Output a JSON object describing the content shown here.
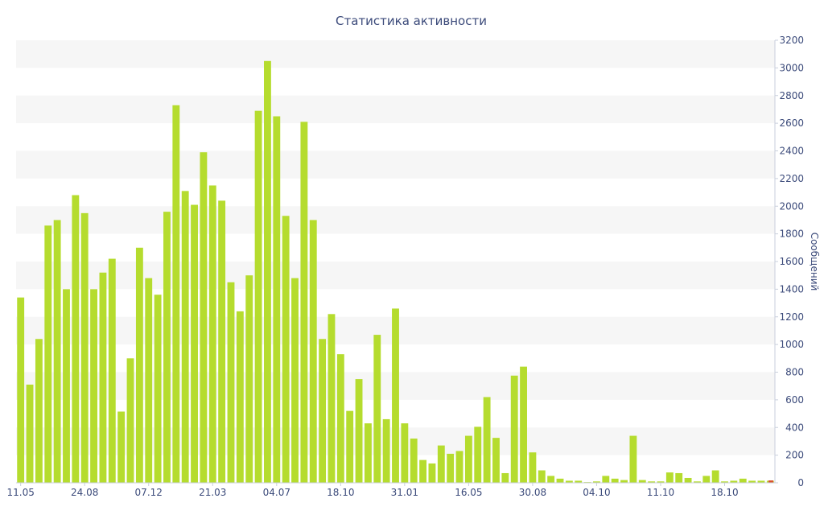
{
  "chart_data": {
    "type": "bar",
    "title": "Статистика активности",
    "xlabel": "",
    "ylabel": "Сообщений",
    "ylim": [
      0,
      3200
    ],
    "y_ticks": [
      0,
      200,
      400,
      600,
      800,
      1000,
      1200,
      1400,
      1600,
      1800,
      2000,
      2200,
      2400,
      2600,
      2800,
      3000,
      3200
    ],
    "y_axis_position": "right",
    "grid": "alternating horizontal bands",
    "x_tick_labels": [
      {
        "index": 0,
        "label": "11.05"
      },
      {
        "index": 7,
        "label": "24.08"
      },
      {
        "index": 14,
        "label": "07.12"
      },
      {
        "index": 21,
        "label": "21.03"
      },
      {
        "index": 28,
        "label": "04.07"
      },
      {
        "index": 35,
        "label": "18.10"
      },
      {
        "index": 42,
        "label": "31.01"
      },
      {
        "index": 49,
        "label": "16.05"
      },
      {
        "index": 56,
        "label": "30.08"
      },
      {
        "index": 63,
        "label": "04.10"
      },
      {
        "index": 70,
        "label": "11.10"
      },
      {
        "index": 77,
        "label": "18.10"
      }
    ],
    "series": [
      {
        "color": "#b5dc2e",
        "values": [
          1340,
          710,
          1040,
          1860,
          1900,
          1400,
          2080,
          1950,
          1400,
          1520,
          1620,
          515,
          900,
          1700,
          1480,
          1360,
          1960,
          2730,
          2110,
          2010,
          2390,
          2150,
          2040,
          1450,
          1240,
          1500,
          2690,
          3050,
          2650,
          1930,
          1480,
          2610,
          1900,
          1040,
          1220,
          930,
          520,
          750,
          430,
          1070,
          460,
          1260,
          430,
          320,
          165,
          140,
          270,
          210,
          230,
          340,
          405,
          620,
          325,
          70,
          775,
          840,
          220,
          90,
          50,
          30,
          15,
          15,
          5,
          10,
          50,
          30,
          20,
          340,
          20,
          10,
          10,
          75,
          70,
          35,
          10,
          50,
          90,
          10,
          15,
          30,
          15,
          15,
          15
        ]
      }
    ],
    "last_marker_color": "#d9532c"
  }
}
